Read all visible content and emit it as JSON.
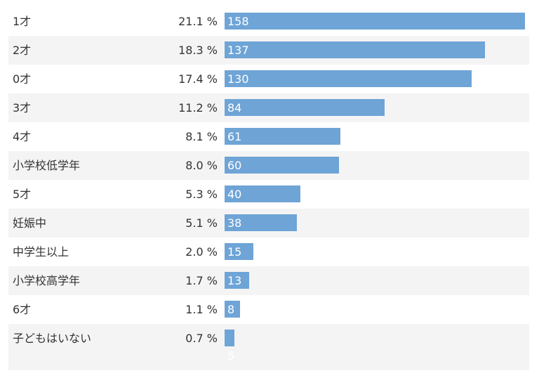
{
  "chart_data": {
    "type": "bar",
    "orientation": "horizontal",
    "title": "",
    "xlabel": "",
    "ylabel": "",
    "categories": [
      "1才",
      "2才",
      "0才",
      "3才",
      "4才",
      "小学校低学年",
      "5才",
      "妊娠中",
      "中学生以上",
      "小学校高学年",
      "6才",
      "子どもはいない"
    ],
    "values": [
      158,
      137,
      130,
      84,
      61,
      60,
      40,
      38,
      15,
      13,
      8,
      5
    ],
    "percentages": [
      "21.1 %",
      "18.3 %",
      "17.4 %",
      "11.2 %",
      "8.1 %",
      "8.0 %",
      "5.3 %",
      "5.1 %",
      "2.0 %",
      "1.7 %",
      "1.1 %",
      "0.7 %"
    ],
    "xlim": [
      0,
      158
    ],
    "grid": false,
    "bar_color": "#6ea4d6",
    "alt_row_color": "#f4f4f4",
    "label_color": "#333333",
    "value_label_color": "#ffffff"
  }
}
